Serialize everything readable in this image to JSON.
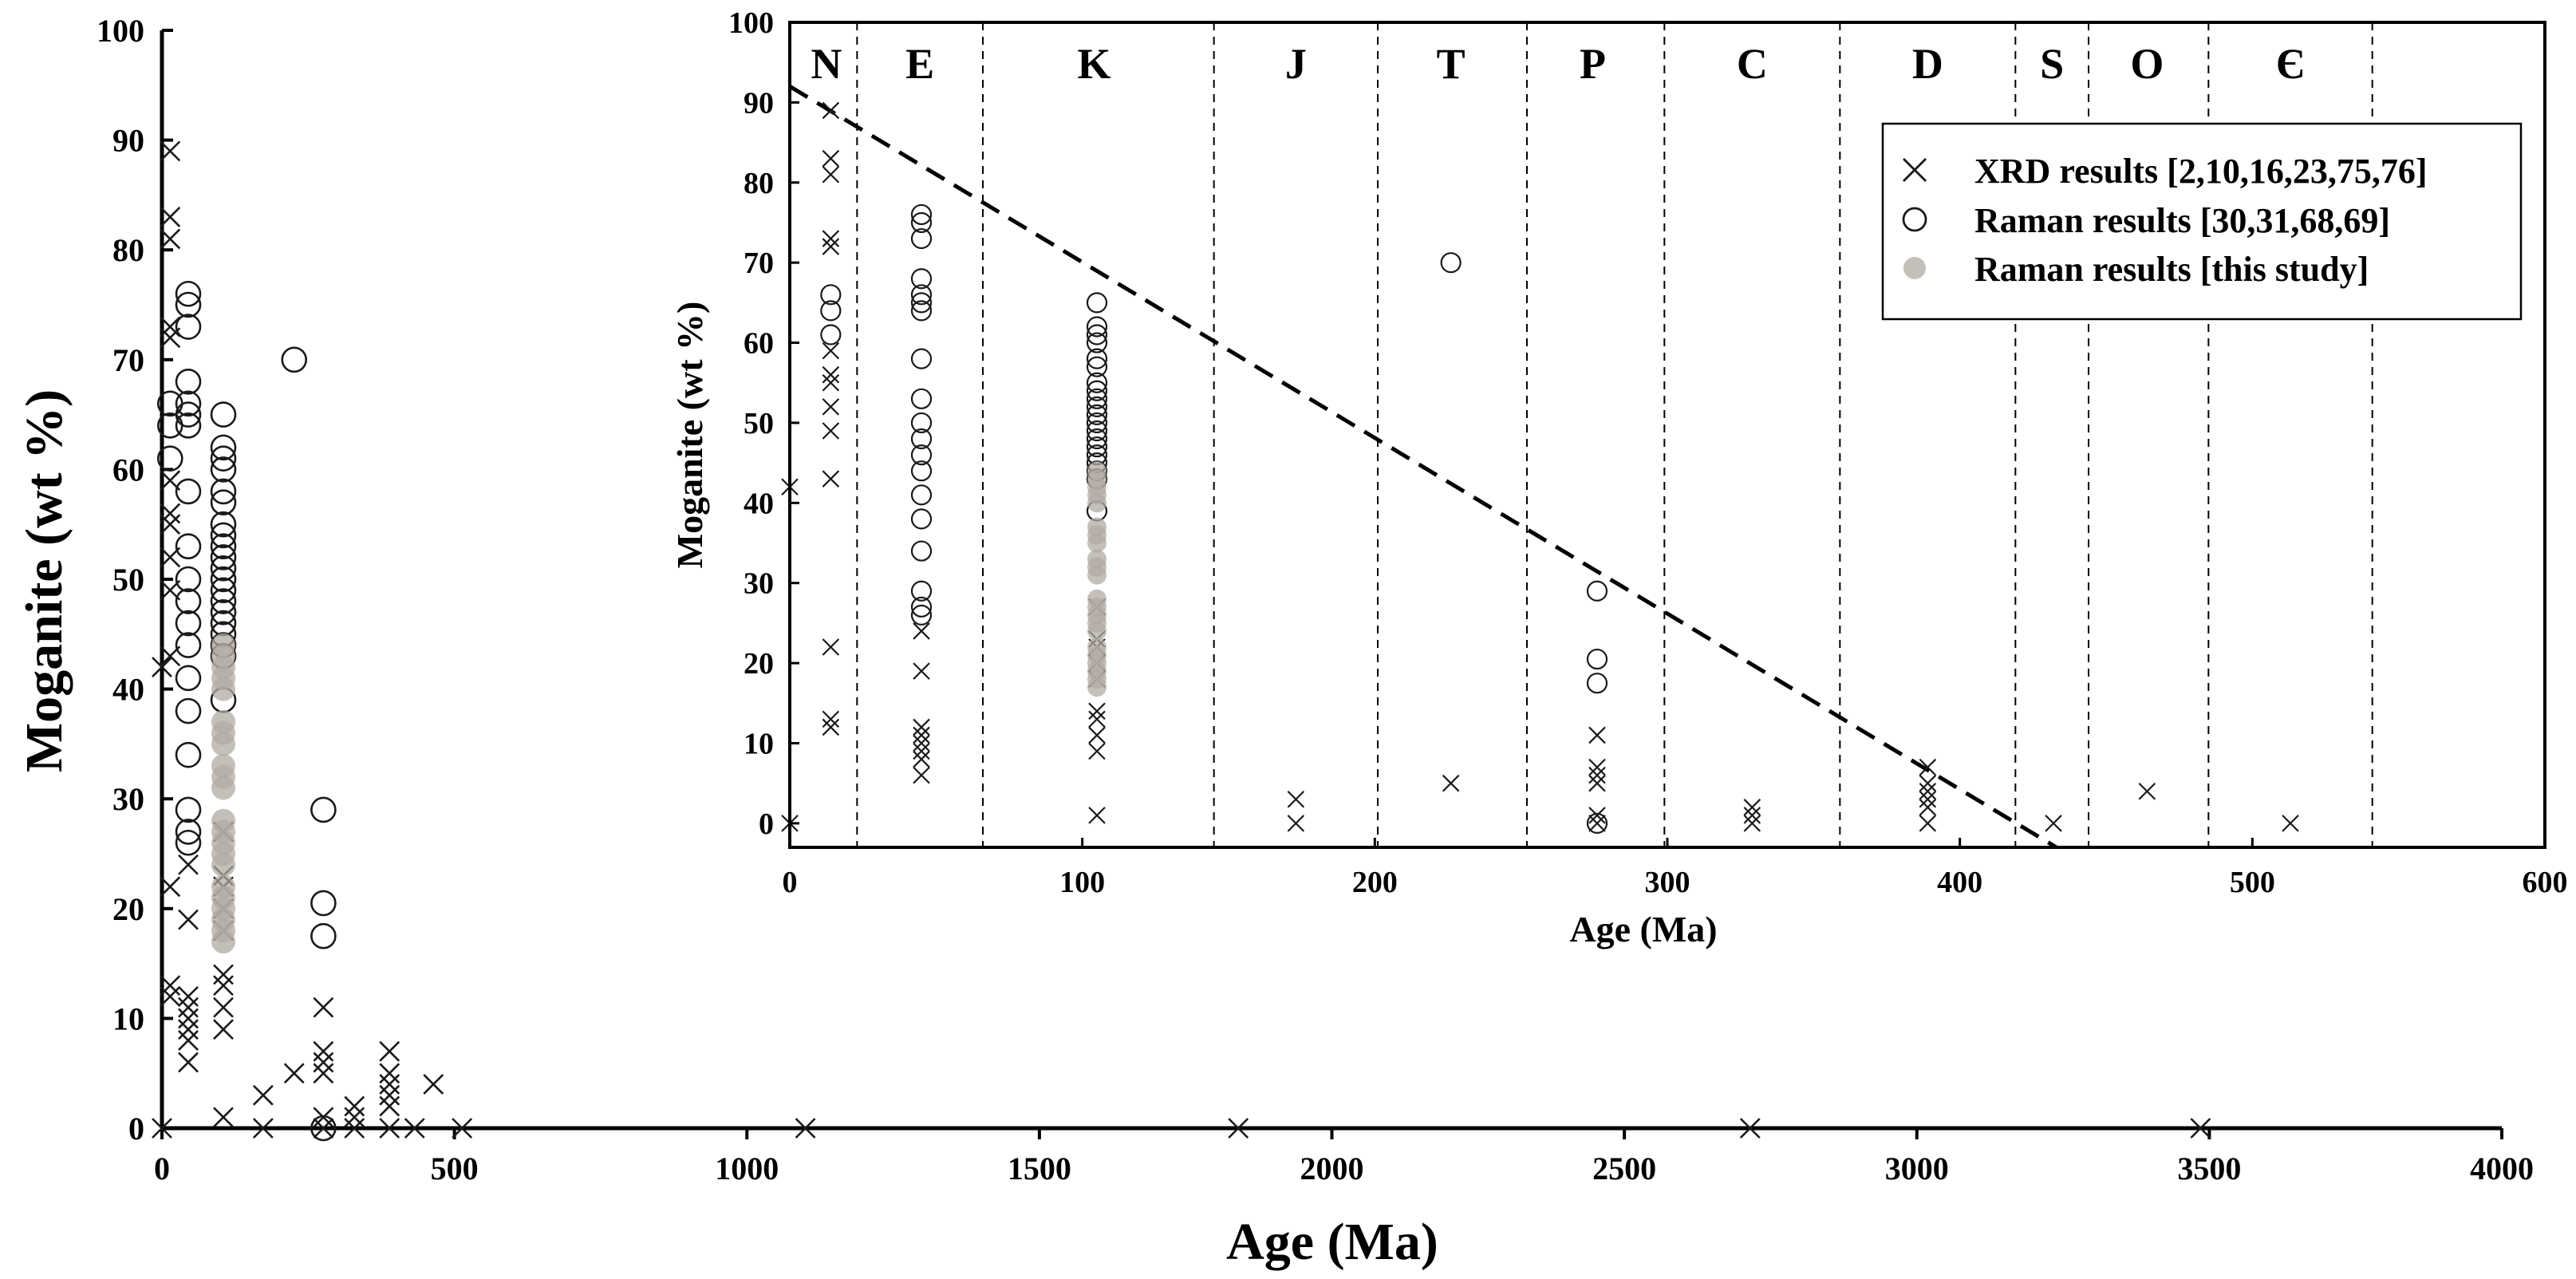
{
  "colors": {
    "xrd": "#1a1a1a",
    "raman_lit": "#1a1a1a",
    "raman_this": "#b2aaa3",
    "axis": "#000000"
  },
  "chart_data": [
    {
      "type": "scatter",
      "panel": "main",
      "xlabel": "Age  (Ma)",
      "ylabel": "Moganite (wt %)",
      "xlim": [
        0,
        4000
      ],
      "ylim": [
        0,
        100
      ],
      "xticks": [
        "0",
        "500",
        "1000",
        "1500",
        "2000",
        "2500",
        "3000",
        "3500",
        "4000"
      ],
      "yticks": [
        "0",
        "10",
        "20",
        "30",
        "40",
        "50",
        "60",
        "70",
        "80",
        "90",
        "100"
      ],
      "series": [
        {
          "name": "XRD",
          "marker": "x",
          "points": [
            [
              0,
              42
            ],
            [
              0,
              0
            ],
            [
              14,
              89
            ],
            [
              14,
              83
            ],
            [
              14,
              81
            ],
            [
              14,
              73
            ],
            [
              14,
              72
            ],
            [
              14,
              59
            ],
            [
              14,
              56
            ],
            [
              14,
              55
            ],
            [
              14,
              52
            ],
            [
              14,
              49
            ],
            [
              14,
              43
            ],
            [
              14,
              22
            ],
            [
              14,
              13
            ],
            [
              14,
              12
            ],
            [
              45,
              24
            ],
            [
              45,
              19
            ],
            [
              45,
              12
            ],
            [
              45,
              11
            ],
            [
              45,
              10
            ],
            [
              45,
              9
            ],
            [
              45,
              8
            ],
            [
              45,
              6
            ],
            [
              105,
              27
            ],
            [
              105,
              23
            ],
            [
              105,
              22
            ],
            [
              105,
              20
            ],
            [
              105,
              18
            ],
            [
              105,
              14
            ],
            [
              105,
              13
            ],
            [
              105,
              11
            ],
            [
              105,
              9
            ],
            [
              105,
              1
            ],
            [
              173,
              3
            ],
            [
              173,
              0
            ],
            [
              226,
              5
            ],
            [
              276,
              11
            ],
            [
              276,
              7
            ],
            [
              276,
              6
            ],
            [
              276,
              5
            ],
            [
              276,
              1
            ],
            [
              276,
              0
            ],
            [
              329,
              2
            ],
            [
              329,
              1
            ],
            [
              329,
              0
            ],
            [
              389,
              7
            ],
            [
              389,
              5
            ],
            [
              389,
              4
            ],
            [
              389,
              3
            ],
            [
              389,
              2
            ],
            [
              389,
              0
            ],
            [
              432,
              0
            ],
            [
              464,
              4
            ],
            [
              513,
              0
            ],
            [
              1100,
              0
            ],
            [
              1840,
              0
            ],
            [
              2715,
              0
            ],
            [
              3485,
              0
            ]
          ]
        },
        {
          "name": "Raman lit",
          "marker": "o",
          "points": [
            [
              14,
              66
            ],
            [
              14,
              64
            ],
            [
              14,
              61
            ],
            [
              45,
              76
            ],
            [
              45,
              75
            ],
            [
              45,
              73
            ],
            [
              45,
              68
            ],
            [
              45,
              66
            ],
            [
              45,
              65
            ],
            [
              45,
              64
            ],
            [
              45,
              58
            ],
            [
              45,
              53
            ],
            [
              45,
              50
            ],
            [
              45,
              48
            ],
            [
              45,
              46
            ],
            [
              45,
              44
            ],
            [
              45,
              41
            ],
            [
              45,
              38
            ],
            [
              45,
              34
            ],
            [
              45,
              29
            ],
            [
              45,
              27
            ],
            [
              45,
              26
            ],
            [
              105,
              65
            ],
            [
              105,
              62
            ],
            [
              105,
              61
            ],
            [
              105,
              60
            ],
            [
              105,
              58
            ],
            [
              105,
              57
            ],
            [
              105,
              55
            ],
            [
              105,
              54
            ],
            [
              105,
              53
            ],
            [
              105,
              52
            ],
            [
              105,
              51
            ],
            [
              105,
              50
            ],
            [
              105,
              49
            ],
            [
              105,
              48
            ],
            [
              105,
              47
            ],
            [
              105,
              46
            ],
            [
              105,
              45
            ],
            [
              105,
              44
            ],
            [
              105,
              43
            ],
            [
              105,
              39
            ],
            [
              226,
              70
            ],
            [
              276,
              29
            ],
            [
              276,
              20.5
            ],
            [
              276,
              17.5
            ],
            [
              276,
              0
            ]
          ]
        },
        {
          "name": "Raman this study",
          "marker": "filled",
          "points": [
            [
              105,
              44
            ],
            [
              105,
              43
            ],
            [
              105,
              42
            ],
            [
              105,
              41
            ],
            [
              105,
              40
            ],
            [
              105,
              37
            ],
            [
              105,
              36
            ],
            [
              105,
              35
            ],
            [
              105,
              33
            ],
            [
              105,
              32
            ],
            [
              105,
              31
            ],
            [
              105,
              28
            ],
            [
              105,
              27
            ],
            [
              105,
              26
            ],
            [
              105,
              25
            ],
            [
              105,
              24
            ],
            [
              105,
              22
            ],
            [
              105,
              21
            ],
            [
              105,
              20
            ],
            [
              105,
              19
            ],
            [
              105,
              18
            ],
            [
              105,
              17
            ]
          ]
        }
      ]
    },
    {
      "type": "scatter",
      "panel": "inset",
      "xlabel": "Age (Ma)",
      "ylabel": "Moganite (wt %)",
      "xlim": [
        0,
        600
      ],
      "ylim": [
        -3,
        100
      ],
      "xticks": [
        "0",
        "100",
        "200",
        "300",
        "400",
        "500",
        "600"
      ],
      "yticks": [
        "0",
        "10",
        "20",
        "30",
        "40",
        "50",
        "60",
        "70",
        "80",
        "90",
        "100"
      ],
      "period_labels": [
        "N",
        "E",
        "K",
        "J",
        "T",
        "P",
        "C",
        "D",
        "S",
        "O",
        "Є"
      ],
      "period_boundaries_ma": [
        23,
        66,
        145,
        201,
        252,
        299,
        359,
        419,
        444,
        485,
        541
      ],
      "period_label_centers_ma": [
        12.5,
        44.5,
        104,
        173,
        226,
        274.5,
        329,
        389,
        431.5,
        464,
        513
      ],
      "trend_line": {
        "from": [
          0,
          92
        ],
        "to": [
          433,
          -3
        ]
      },
      "legend": [
        {
          "marker": "x",
          "label": "XRD  results [2,10,16,23,75,76]"
        },
        {
          "marker": "o",
          "label": "Raman  results [30,31,68,69]"
        },
        {
          "marker": "filled",
          "label": "Raman  results [this study]"
        }
      ],
      "series_ref": "same as main panel, ages <= 600 Ma"
    }
  ]
}
